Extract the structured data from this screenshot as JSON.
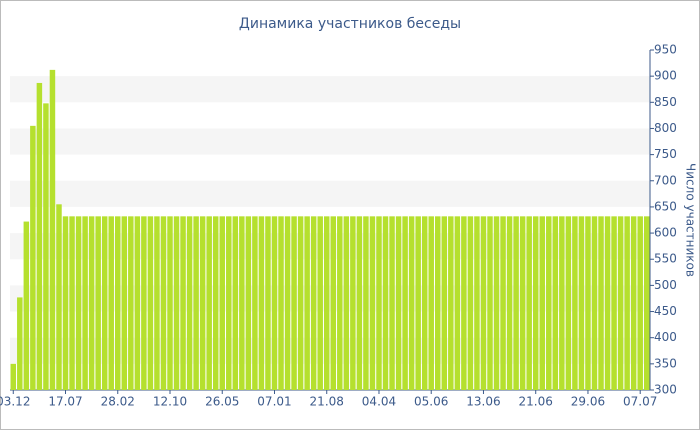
{
  "chart_data": {
    "type": "bar",
    "title": "Динамика участников беседы",
    "y_label": "Число участников",
    "categories": [
      "03.12",
      null,
      null,
      null,
      null,
      null,
      null,
      null,
      "17.07",
      null,
      null,
      null,
      null,
      null,
      null,
      null,
      "28.02",
      null,
      null,
      null,
      null,
      null,
      null,
      null,
      "12.10",
      null,
      null,
      null,
      null,
      null,
      null,
      null,
      "26.05",
      null,
      null,
      null,
      null,
      null,
      null,
      null,
      "07.01",
      null,
      null,
      null,
      null,
      null,
      null,
      null,
      "21.08",
      null,
      null,
      null,
      null,
      null,
      null,
      null,
      "04.04",
      null,
      null,
      null,
      null,
      null,
      null,
      null,
      "05.06",
      null,
      null,
      null,
      null,
      null,
      null,
      null,
      "13.06",
      null,
      null,
      null,
      null,
      null,
      null,
      null,
      "21.06",
      null,
      null,
      null,
      null,
      null,
      null,
      null,
      "29.06",
      null,
      null,
      null,
      null,
      null,
      null,
      null,
      "07.07",
      null
    ],
    "values": [
      350,
      477,
      622,
      805,
      887,
      848,
      912,
      655,
      632,
      632,
      632,
      632,
      632,
      632,
      632,
      632,
      632,
      632,
      632,
      632,
      632,
      632,
      632,
      632,
      632,
      632,
      632,
      632,
      632,
      632,
      632,
      632,
      632,
      632,
      632,
      632,
      632,
      632,
      632,
      632,
      632,
      632,
      632,
      632,
      632,
      632,
      632,
      632,
      632,
      632,
      632,
      632,
      632,
      632,
      632,
      632,
      632,
      632,
      632,
      632,
      632,
      632,
      632,
      632,
      632,
      632,
      632,
      632,
      632,
      632,
      632,
      632,
      632,
      632,
      632,
      632,
      632,
      632,
      632,
      632,
      632,
      632,
      632,
      632,
      632,
      632,
      632,
      632,
      632,
      632,
      632,
      632,
      632,
      632,
      632,
      632,
      632,
      632
    ],
    "color": "#b5e02e",
    "ylim": [
      300,
      950
    ],
    "yticks": [
      300,
      350,
      400,
      450,
      500,
      550,
      600,
      650,
      700,
      750,
      800,
      850,
      900,
      950
    ],
    "grid": true
  }
}
